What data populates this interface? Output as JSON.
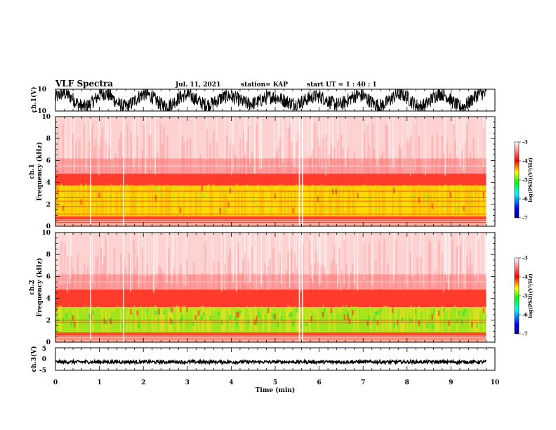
{
  "header": {
    "title": "VLF Spectra",
    "date": "Jul. 11, 2021",
    "station": "station= KAP",
    "start_ut": "start UT =  1 : 40 : 1"
  },
  "chart_data": [
    {
      "type": "line",
      "panel": "ch1-waveform",
      "ylabel": "ch.1(V)",
      "ylim": [
        -10,
        10
      ],
      "ytick_labels": [
        "10",
        "-10"
      ],
      "xlim": [
        0,
        10
      ]
    },
    {
      "type": "heatmap",
      "panel": "ch1-spectrogram",
      "ylabel": "ch.1\nFrequency (kHz)",
      "ylabel_lines": [
        "ch.1",
        "Frequency (kHz)"
      ],
      "ylim": [
        0,
        10
      ],
      "ytick_labels": [
        "0",
        "2",
        "4",
        "6",
        "8",
        "10"
      ],
      "xlim": [
        0,
        10
      ],
      "data_end_min": 9.8,
      "colorbar": {
        "label": "log(PSD)(V²/Hz)",
        "ticks": [
          "-3",
          "-4",
          "-5",
          "-6",
          "-7"
        ],
        "range": [
          -7,
          -3
        ]
      }
    },
    {
      "type": "heatmap",
      "panel": "ch2-spectrogram",
      "ylabel": "ch.2\nFrequency (kHz)",
      "ylabel_lines": [
        "ch.2",
        "Frequency (kHz)"
      ],
      "ylim": [
        0,
        10
      ],
      "ytick_labels": [
        "0",
        "2",
        "4",
        "6",
        "8",
        "10"
      ],
      "xlim": [
        0,
        10
      ],
      "data_end_min": 9.8,
      "colorbar": {
        "label": "log(PSD)(V²/Hz)",
        "ticks": [
          "-3",
          "-4",
          "-5",
          "-6",
          "-7"
        ],
        "range": [
          -7,
          -3
        ]
      }
    },
    {
      "type": "line",
      "panel": "ch3-waveform",
      "ylabel": "ch.3(V)",
      "ylim": [
        -5,
        5
      ],
      "ytick_labels": [
        "5",
        "0",
        "-5"
      ],
      "xlim": [
        0,
        10
      ],
      "xlabel": "Time (min)",
      "xtick_labels": [
        "0",
        "1",
        "2",
        "3",
        "4",
        "5",
        "6",
        "7",
        "8",
        "9",
        "10"
      ]
    }
  ],
  "colors": {
    "background": "#ffffff",
    "trace": "#000000",
    "colormap": [
      "#00007f",
      "#0000ff",
      "#00ffff",
      "#00ff00",
      "#ffff00",
      "#ff0000",
      "#ffffff"
    ]
  }
}
